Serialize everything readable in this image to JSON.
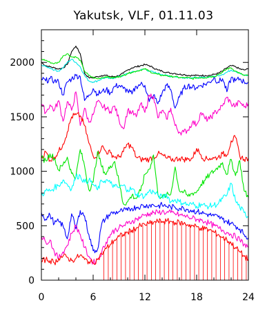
{
  "chart_data": {
    "type": "line",
    "title": "Yakutsk, VLF, 01.11.03",
    "xlabel": "",
    "ylabel": "",
    "xlim": [
      0,
      24
    ],
    "ylim": [
      0,
      2300
    ],
    "x_ticks": [
      "0",
      "6",
      "12",
      "18",
      "24"
    ],
    "y_ticks": [
      "0",
      "500",
      "1000",
      "1500",
      "2000"
    ],
    "grid": false,
    "legend": "none",
    "x": [
      0,
      0.5,
      1,
      1.5,
      2,
      2.5,
      3,
      3.5,
      4,
      4.5,
      5,
      5.5,
      6,
      6.5,
      7,
      7.5,
      8,
      8.5,
      9,
      9.5,
      10,
      10.5,
      11,
      11.5,
      12,
      12.5,
      13,
      13.5,
      14,
      14.5,
      15,
      15.5,
      16,
      16.5,
      17,
      17.5,
      18,
      18.5,
      19,
      19.5,
      20,
      20.5,
      21,
      21.5,
      22,
      22.5,
      23,
      23.5,
      24
    ],
    "series": [
      {
        "color": "#000000",
        "values": [
          2000,
          1970,
          1960,
          1950,
          1940,
          1950,
          1980,
          2100,
          2150,
          2080,
          1900,
          1860,
          1860,
          1870,
          1880,
          1880,
          1870,
          1870,
          1880,
          1900,
          1930,
          1950,
          1960,
          1970,
          1980,
          1970,
          1950,
          1930,
          1920,
          1910,
          1900,
          1900,
          1890,
          1890,
          1880,
          1880,
          1880,
          1880,
          1880,
          1880,
          1890,
          1900,
          1920,
          1950,
          1970,
          1960,
          1940,
          1930,
          1940
        ]
      },
      {
        "color": "#00e6e6",
        "values": [
          1980,
          1960,
          1950,
          1930,
          1920,
          1950,
          2000,
          2030,
          2000,
          1960,
          1880,
          1830,
          1820,
          1830,
          1850,
          1860,
          1850,
          1860,
          1870,
          1880,
          1900,
          1910,
          1920,
          1930,
          1940,
          1920,
          1910,
          1900,
          1890,
          1880,
          1870,
          1870,
          1860,
          1860,
          1860,
          1860,
          1860,
          1860,
          1860,
          1870,
          1870,
          1880,
          1890,
          1910,
          1930,
          1920,
          1900,
          1880,
          1880
        ]
      },
      {
        "color": "#00e600",
        "values": [
          2030,
          2020,
          2000,
          1990,
          2000,
          2060,
          2080,
          2050,
          2050,
          2020,
          1920,
          1880,
          1860,
          1850,
          1860,
          1870,
          1860,
          1860,
          1870,
          1880,
          1900,
          1910,
          1920,
          1930,
          1940,
          1920,
          1900,
          1890,
          1880,
          1880,
          1870,
          1870,
          1860,
          1860,
          1860,
          1850,
          1860,
          1860,
          1860,
          1870,
          1870,
          1890,
          1910,
          1940,
          1950,
          1920,
          1900,
          1880,
          1880
        ]
      },
      {
        "color": "#0000ff",
        "values": [
          1850,
          1830,
          1850,
          1830,
          1820,
          1700,
          1820,
          1850,
          1880,
          1870,
          1650,
          1700,
          1760,
          1710,
          1730,
          1750,
          1720,
          1780,
          1790,
          1760,
          1740,
          1710,
          1780,
          1800,
          1790,
          1640,
          1700,
          1620,
          1720,
          1790,
          1750,
          1580,
          1680,
          1760,
          1790,
          1770,
          1770,
          1790,
          1800,
          1820,
          1860,
          1820,
          1850,
          1730,
          1860,
          1830,
          1850,
          1820,
          1820
        ]
      },
      {
        "color": "#ff00c8",
        "values": [
          1620,
          1540,
          1610,
          1560,
          1650,
          1460,
          1640,
          1560,
          1730,
          1420,
          1580,
          1450,
          1520,
          1640,
          1600,
          1580,
          1550,
          1600,
          1470,
          1390,
          1560,
          1540,
          1500,
          1620,
          1540,
          1700,
          1690,
          1490,
          1560,
          1480,
          1580,
          1420,
          1360,
          1360,
          1380,
          1450,
          1430,
          1540,
          1480,
          1480,
          1530,
          1560,
          1600,
          1680,
          1620,
          1600,
          1640,
          1590,
          1620
        ]
      },
      {
        "color": "#ff0000",
        "values": [
          1120,
          1180,
          1100,
          1130,
          1180,
          1250,
          1360,
          1500,
          1520,
          1510,
          1420,
          1260,
          1140,
          1150,
          1230,
          1180,
          1170,
          1130,
          1130,
          1180,
          1250,
          1220,
          1130,
          1110,
          1110,
          1110,
          1130,
          1160,
          1150,
          1120,
          1110,
          1110,
          1120,
          1110,
          1110,
          1120,
          1210,
          1150,
          1110,
          1120,
          1120,
          1130,
          1160,
          1150,
          1280,
          1310,
          1140,
          1110,
          1120
        ]
      },
      {
        "color": "#00e600",
        "values": [
          1120,
          1100,
          1160,
          1120,
          1010,
          1060,
          1130,
          980,
          950,
          1200,
          1050,
          830,
          900,
          1180,
          1040,
          970,
          1050,
          1090,
          900,
          700,
          720,
          780,
          750,
          820,
          970,
          1020,
          1150,
          790,
          760,
          780,
          790,
          1040,
          820,
          810,
          770,
          800,
          810,
          880,
          920,
          970,
          1000,
          1040,
          1080,
          970,
          1110,
          960,
          1100,
          820,
          760
        ]
      },
      {
        "color": "#00ffff",
        "values": [
          780,
          820,
          820,
          850,
          870,
          920,
          880,
          840,
          950,
          960,
          900,
          920,
          880,
          830,
          910,
          920,
          890,
          860,
          850,
          870,
          830,
          840,
          790,
          780,
          770,
          820,
          810,
          780,
          760,
          790,
          720,
          740,
          720,
          710,
          690,
          700,
          680,
          700,
          680,
          680,
          690,
          700,
          750,
          780,
          890,
          730,
          670,
          620,
          580
        ]
      },
      {
        "color": "#0000ff",
        "values": [
          620,
          560,
          600,
          520,
          540,
          500,
          380,
          610,
          470,
          640,
          590,
          420,
          270,
          280,
          520,
          570,
          610,
          620,
          630,
          640,
          640,
          660,
          670,
          680,
          680,
          690,
          690,
          680,
          690,
          680,
          670,
          670,
          660,
          660,
          650,
          640,
          630,
          620,
          610,
          600,
          590,
          580,
          560,
          540,
          520,
          500,
          470,
          420,
          390
        ]
      },
      {
        "color": "#ff00c8",
        "values": [
          400,
          350,
          370,
          260,
          200,
          260,
          320,
          430,
          500,
          420,
          300,
          220,
          160,
          190,
          260,
          350,
          420,
          460,
          480,
          500,
          520,
          540,
          560,
          580,
          600,
          610,
          620,
          620,
          630,
          620,
          620,
          610,
          600,
          590,
          580,
          570,
          560,
          550,
          540,
          520,
          500,
          480,
          460,
          440,
          420,
          400,
          370,
          330,
          300
        ]
      },
      {
        "color": "#ff0000",
        "values": [
          170,
          190,
          180,
          160,
          200,
          220,
          210,
          180,
          200,
          230,
          190,
          170,
          160,
          190,
          240,
          290,
          330,
          370,
          400,
          420,
          440,
          460,
          480,
          500,
          510,
          520,
          530,
          540,
          540,
          540,
          540,
          530,
          530,
          520,
          510,
          500,
          490,
          480,
          470,
          460,
          440,
          420,
          390,
          370,
          340,
          300,
          260,
          220,
          190
        ]
      }
    ]
  }
}
